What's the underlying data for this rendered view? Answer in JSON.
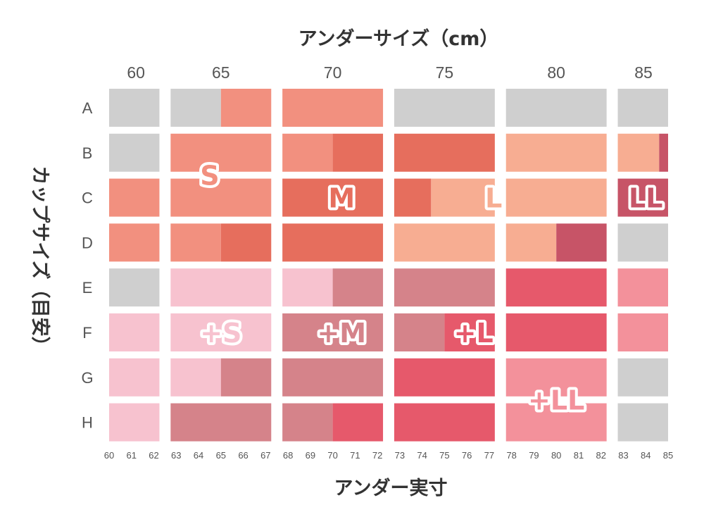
{
  "chart_data": {
    "type": "heatmap",
    "title_top": "アンダーサイズ（cm）",
    "xlabel": "アンダー実寸",
    "ylabel": "カップサイズ（目安）",
    "band_labels": [
      "60",
      "65",
      "70",
      "75",
      "80",
      "85"
    ],
    "cup_labels": [
      "A",
      "B",
      "C",
      "D",
      "E",
      "F",
      "G",
      "H"
    ],
    "actual_ticks": [
      "60",
      "61",
      "62",
      "63",
      "64",
      "65",
      "66",
      "67",
      "68",
      "69",
      "70",
      "71",
      "72",
      "73",
      "74",
      "75",
      "76",
      "77",
      "78",
      "79",
      "80",
      "81",
      "82",
      "83",
      "84",
      "85"
    ],
    "xlim": [
      60,
      85
    ],
    "colors": {
      "N": "#cfcfcf",
      "S": "#f2907f",
      "M": "#e66e5d",
      "L": "#f7ad92",
      "LL": "#c75467",
      "pS": "#f7c2cf",
      "pM": "#d5838a",
      "pL": "#e6596b",
      "pLL": "#f3919b"
    },
    "rows": [
      {
        "cup": "A",
        "segments": [
          {
            "from": 60,
            "to": 62.25,
            "size": "N"
          },
          {
            "from": 62.75,
            "to": 65,
            "size": "N"
          },
          {
            "from": 65,
            "to": 67.25,
            "size": "S"
          },
          {
            "from": 67.75,
            "to": 72.25,
            "size": "S"
          },
          {
            "from": 72.75,
            "to": 77.25,
            "size": "N"
          },
          {
            "from": 77.75,
            "to": 82.25,
            "size": "N"
          },
          {
            "from": 82.75,
            "to": 85,
            "size": "N"
          }
        ]
      },
      {
        "cup": "B",
        "segments": [
          {
            "from": 60,
            "to": 62.25,
            "size": "N"
          },
          {
            "from": 62.75,
            "to": 67.25,
            "size": "S"
          },
          {
            "from": 67.75,
            "to": 70,
            "size": "S"
          },
          {
            "from": 70,
            "to": 72.25,
            "size": "M"
          },
          {
            "from": 72.75,
            "to": 77.25,
            "size": "M"
          },
          {
            "from": 77.75,
            "to": 82.25,
            "size": "L"
          },
          {
            "from": 82.75,
            "to": 84.6,
            "size": "L"
          },
          {
            "from": 84.6,
            "to": 85,
            "size": "LL"
          }
        ]
      },
      {
        "cup": "C",
        "segments": [
          {
            "from": 60,
            "to": 62.25,
            "size": "S"
          },
          {
            "from": 62.75,
            "to": 67.25,
            "size": "S"
          },
          {
            "from": 67.75,
            "to": 72.25,
            "size": "M"
          },
          {
            "from": 72.75,
            "to": 74.4,
            "size": "M"
          },
          {
            "from": 74.4,
            "to": 77.25,
            "size": "L"
          },
          {
            "from": 77.75,
            "to": 82.25,
            "size": "L"
          },
          {
            "from": 82.75,
            "to": 85,
            "size": "LL"
          }
        ]
      },
      {
        "cup": "D",
        "segments": [
          {
            "from": 60,
            "to": 62.25,
            "size": "S"
          },
          {
            "from": 62.75,
            "to": 65,
            "size": "S"
          },
          {
            "from": 65,
            "to": 67.25,
            "size": "M"
          },
          {
            "from": 67.75,
            "to": 72.25,
            "size": "M"
          },
          {
            "from": 72.75,
            "to": 77.25,
            "size": "L"
          },
          {
            "from": 77.75,
            "to": 80,
            "size": "L"
          },
          {
            "from": 80,
            "to": 82.25,
            "size": "LL"
          },
          {
            "from": 82.75,
            "to": 85,
            "size": "N"
          }
        ]
      },
      {
        "cup": "E",
        "segments": [
          {
            "from": 60,
            "to": 62.25,
            "size": "N"
          },
          {
            "from": 62.75,
            "to": 67.25,
            "size": "pS"
          },
          {
            "from": 67.75,
            "to": 70,
            "size": "pS"
          },
          {
            "from": 70,
            "to": 72.25,
            "size": "pM"
          },
          {
            "from": 72.75,
            "to": 77.25,
            "size": "pM"
          },
          {
            "from": 77.75,
            "to": 82.25,
            "size": "pL"
          },
          {
            "from": 82.75,
            "to": 85,
            "size": "pLL"
          }
        ]
      },
      {
        "cup": "F",
        "segments": [
          {
            "from": 60,
            "to": 62.25,
            "size": "pS"
          },
          {
            "from": 62.75,
            "to": 67.25,
            "size": "pS"
          },
          {
            "from": 67.75,
            "to": 72.25,
            "size": "pM"
          },
          {
            "from": 72.75,
            "to": 75,
            "size": "pM"
          },
          {
            "from": 75,
            "to": 77.25,
            "size": "pL"
          },
          {
            "from": 77.75,
            "to": 82.25,
            "size": "pL"
          },
          {
            "from": 82.75,
            "to": 85,
            "size": "pLL"
          }
        ]
      },
      {
        "cup": "G",
        "segments": [
          {
            "from": 60,
            "to": 62.25,
            "size": "pS"
          },
          {
            "from": 62.75,
            "to": 65,
            "size": "pS"
          },
          {
            "from": 65,
            "to": 67.25,
            "size": "pM"
          },
          {
            "from": 67.75,
            "to": 72.25,
            "size": "pM"
          },
          {
            "from": 72.75,
            "to": 77.25,
            "size": "pL"
          },
          {
            "from": 77.75,
            "to": 82.25,
            "size": "pLL"
          },
          {
            "from": 82.75,
            "to": 85,
            "size": "N"
          }
        ]
      },
      {
        "cup": "H",
        "segments": [
          {
            "from": 60,
            "to": 62.25,
            "size": "pS"
          },
          {
            "from": 62.75,
            "to": 67.25,
            "size": "pM"
          },
          {
            "from": 67.75,
            "to": 70,
            "size": "pM"
          },
          {
            "from": 70,
            "to": 72.25,
            "size": "pL"
          },
          {
            "from": 72.75,
            "to": 77.25,
            "size": "pL"
          },
          {
            "from": 77.75,
            "to": 82.25,
            "size": "pLL"
          },
          {
            "from": 82.75,
            "to": 85,
            "size": "N"
          }
        ]
      }
    ],
    "size_labels": [
      {
        "text": "S",
        "size": "S",
        "x": 64.5,
        "row": 1.5
      },
      {
        "text": "M",
        "size": "M",
        "x": 70.4,
        "row": 2.0
      },
      {
        "text": "L",
        "size": "L",
        "x": 77.2,
        "row": 2.0
      },
      {
        "text": "LL",
        "size": "LL",
        "x": 84.0,
        "row": 2.0
      },
      {
        "text": "+S",
        "size": "pS",
        "x": 65.0,
        "row": 5.0
      },
      {
        "text": "+M",
        "size": "pM",
        "x": 70.4,
        "row": 5.0
      },
      {
        "text": "+L",
        "size": "pL",
        "x": 76.3,
        "row": 5.0
      },
      {
        "text": "+LL",
        "size": "pLL",
        "x": 80.0,
        "row": 6.5
      }
    ]
  }
}
